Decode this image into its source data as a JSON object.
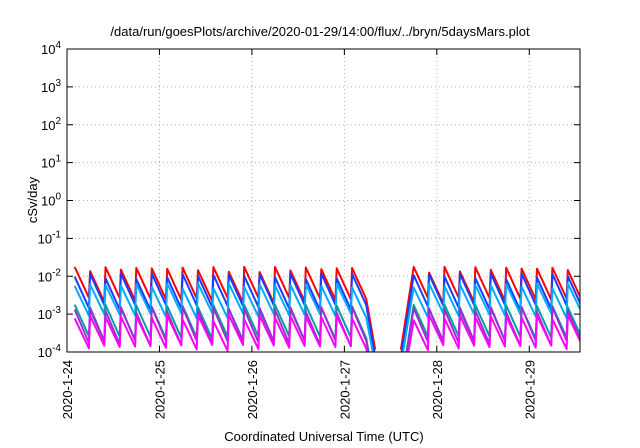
{
  "chart_data": {
    "type": "line",
    "title": "/data/run/goesPlots/archive/2020-01-29/14:00/flux/../bryn/5daysMars.plot",
    "xlabel": "Coordinated Universal Time (UTC)",
    "ylabel": "cSv/day",
    "x_scale": "time",
    "y_scale": "log",
    "xlim": [
      "2020-01-24T00:00",
      "2020-01-29T13:10"
    ],
    "ylim": [
      0.0001,
      10000
    ],
    "y_ticks": [
      {
        "base": "10",
        "exp": "-4",
        "value": 0.0001
      },
      {
        "base": "10",
        "exp": "-3",
        "value": 0.001
      },
      {
        "base": "10",
        "exp": "-2",
        "value": 0.01
      },
      {
        "base": "10",
        "exp": "-1",
        "value": 0.1
      },
      {
        "base": "10",
        "exp": "0",
        "value": 1
      },
      {
        "base": "10",
        "exp": "1",
        "value": 10
      },
      {
        "base": "10",
        "exp": "2",
        "value": 100
      },
      {
        "base": "10",
        "exp": "3",
        "value": 1000
      },
      {
        "base": "10",
        "exp": "4",
        "value": 10000
      }
    ],
    "x_ticks": [
      "2020-1-24",
      "2020-1-25",
      "2020-1-26",
      "2020-1-27",
      "2020-1-28",
      "2020-1-29"
    ],
    "grid": true,
    "legend": "none",
    "pattern": {
      "sawtooth_period_hours": 4,
      "data_gap": [
        "2020-01-27T06:00",
        "2020-01-27T15:00"
      ]
    },
    "series": [
      {
        "color": "#ff0000",
        "peak": 0.015,
        "trough": 0.0023
      },
      {
        "color": "#1a3cff",
        "peak": 0.01,
        "trough": 0.0015
      },
      {
        "color": "#00aaff",
        "peak": 0.0055,
        "trough": 0.0009
      },
      {
        "color": "#00a0a0",
        "peak": 0.0015,
        "trough": 0.00022
      },
      {
        "color": "#9932cc",
        "peak": 0.0013,
        "trough": 0.00017
      },
      {
        "color": "#ff00ff",
        "peak": 0.0008,
        "trough": 0.00013
      }
    ]
  }
}
